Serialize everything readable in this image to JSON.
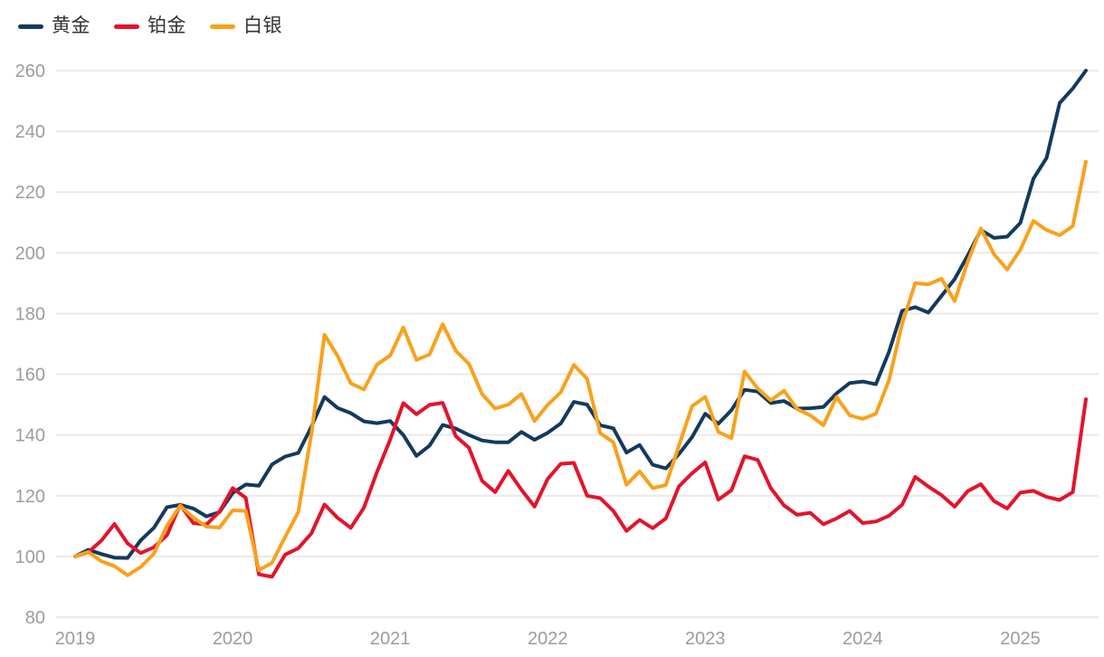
{
  "chart": {
    "legend": [
      {
        "id": "gold",
        "label": "黄金",
        "color": "#133A5E"
      },
      {
        "id": "platinum",
        "label": "铂金",
        "color": "#E4132C"
      },
      {
        "id": "silver",
        "label": "白银",
        "color": "#F9A11B"
      }
    ]
  },
  "colors": {
    "background": "#FFFFFF",
    "gridline": "#E9E9E9",
    "axis_text": "#9C9C9C",
    "legend_text": "#333333"
  },
  "chart_data": {
    "type": "line",
    "title": "",
    "xlabel": "",
    "ylabel": "",
    "x_tick_labels": [
      "2019",
      "2020",
      "2021",
      "2022",
      "2023",
      "2024",
      "2025"
    ],
    "y_ticks": [
      80,
      100,
      120,
      140,
      160,
      180,
      200,
      220,
      240,
      260
    ],
    "ylim": [
      80,
      260
    ],
    "grid": "horizontal",
    "legend_position": "top-left",
    "frequency": "monthly",
    "x_start": "2019-01",
    "x_end": "2025-06",
    "series": [
      {
        "id": "gold",
        "name": "黄金",
        "color": "#133A5E",
        "values": [
          100,
          102.2,
          100.8,
          99.6,
          99.5,
          105.3,
          109.4,
          116.2,
          117.0,
          115.8,
          113.2,
          114.6,
          120.9,
          123.7,
          123.3,
          130.3,
          132.9,
          134.1,
          142.7,
          152.5,
          148.9,
          147.2,
          144.5,
          143.9,
          144.6,
          140.0,
          133.1,
          136.5,
          143.3,
          142.1,
          140.0,
          138.2,
          137.6,
          137.6,
          141.0,
          138.4,
          140.7,
          143.8,
          150.9,
          150.0,
          143.2,
          142.2,
          134.2,
          136.7,
          130.2,
          129.0,
          133.7,
          139.3,
          147.0,
          143.7,
          148.2,
          154.9,
          154.3,
          150.5,
          151.2,
          148.7,
          148.8,
          149.2,
          153.7,
          157.1,
          157.6,
          156.7,
          167.4,
          180.9,
          182.1,
          180.3,
          185.8,
          191.3,
          199.1,
          207.5,
          204.9,
          205.3,
          209.8,
          224.4,
          231.2,
          249.3,
          254.1,
          260.0
        ]
      },
      {
        "id": "platinum",
        "name": "铂金",
        "color": "#E4132C",
        "values": [
          100,
          101.4,
          105.2,
          110.7,
          104.3,
          101.1,
          103.0,
          107.0,
          117.0,
          111.0,
          110.5,
          114.8,
          122.5,
          119.3,
          94.1,
          93.3,
          100.6,
          102.7,
          107.6,
          117.1,
          112.7,
          109.4,
          116.0,
          127.8,
          138.5,
          150.5,
          146.8,
          149.9,
          150.6,
          139.6,
          135.8,
          124.9,
          121.2,
          128.2,
          122.0,
          116.4,
          125.5,
          130.5,
          130.8,
          120.0,
          119.2,
          115.0,
          108.4,
          112.0,
          109.3,
          112.5,
          123.1,
          127.4,
          131.0,
          118.7,
          121.8,
          133.0,
          131.8,
          122.5,
          116.8,
          113.7,
          114.4,
          110.6,
          112.5,
          115.0,
          111.0,
          111.5,
          113.4,
          117.0,
          126.2,
          123.0,
          120.2,
          116.4,
          121.5,
          123.8,
          118.2,
          115.8,
          121.0,
          121.6,
          119.6,
          118.6,
          121.2,
          151.8
        ]
      },
      {
        "id": "silver",
        "name": "白银",
        "color": "#F9A11B",
        "values": [
          100,
          101.5,
          98.4,
          96.8,
          93.8,
          96.5,
          100.9,
          110.1,
          116.7,
          112.8,
          109.8,
          109.5,
          115.2,
          115.0,
          95.5,
          97.9,
          106.4,
          114.6,
          140.3,
          173.0,
          166.0,
          157.0,
          155.0,
          163.2,
          166.2,
          175.4,
          164.7,
          166.5,
          176.5,
          167.7,
          163.4,
          153.5,
          148.7,
          150.0,
          153.5,
          144.6,
          149.9,
          154.1,
          163.1,
          158.5,
          140.6,
          137.6,
          123.6,
          128.0,
          122.5,
          123.5,
          136.5,
          149.5,
          152.5,
          141.0,
          139.0,
          160.9,
          155.3,
          151.4,
          154.6,
          148.5,
          146.5,
          143.2,
          152.5,
          146.5,
          145.3,
          147.0,
          158.0,
          176.6,
          190.0,
          189.6,
          191.5,
          184.1,
          197.0,
          208.0,
          199.5,
          194.5,
          201.0,
          210.5,
          207.5,
          205.8,
          208.8,
          230.0
        ]
      }
    ]
  }
}
